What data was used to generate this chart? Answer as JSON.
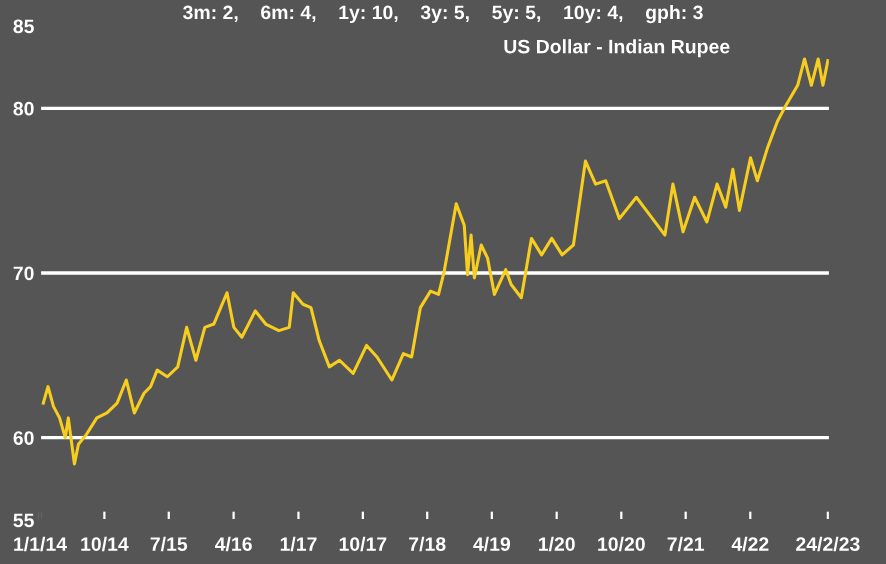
{
  "chart_data": {
    "type": "line",
    "title": "US Dollar - Indian Rupee",
    "annotations": [
      "3m: 2,    6m: 4,    1y: 10,    3y: 5,    5y: 5,    10y: 4,    gph: 3"
    ],
    "x": [
      "2014-01-15",
      "2014-02-04",
      "2014-02-27",
      "2014-03-25",
      "2014-04-18",
      "2014-05-01",
      "2014-05-27",
      "2014-06-13",
      "2014-07-17",
      "2014-08-30",
      "2014-10-12",
      "2014-11-24",
      "2015-01-02",
      "2015-02-05",
      "2015-03-18",
      "2015-04-15",
      "2015-05-13",
      "2015-06-25",
      "2015-08-08",
      "2015-09-15",
      "2015-10-24",
      "2015-12-01",
      "2016-01-08",
      "2016-03-04",
      "2016-04-02",
      "2016-05-06",
      "2016-07-02",
      "2016-08-15",
      "2016-10-10",
      "2016-11-23",
      "2016-12-10",
      "2017-01-20",
      "2017-02-23",
      "2017-03-30",
      "2017-05-12",
      "2017-06-24",
      "2017-08-21",
      "2017-10-17",
      "2017-11-30",
      "2018-02-01",
      "2018-03-22",
      "2018-04-26",
      "2018-06-02",
      "2018-07-15",
      "2018-08-18",
      "2018-09-11",
      "2018-11-01",
      "2018-12-05",
      "2018-12-19",
      "2019-01-03",
      "2019-01-17",
      "2019-02-15",
      "2019-03-14",
      "2019-04-12",
      "2019-05-30",
      "2019-06-22",
      "2019-08-04",
      "2019-09-16",
      "2019-10-29",
      "2019-12-11",
      "2020-01-24",
      "2020-03-12",
      "2020-05-02",
      "2020-06-14",
      "2020-07-27",
      "2020-09-23",
      "2020-12-04",
      "2021-01-31",
      "2021-04-04",
      "2021-05-08",
      "2021-06-20",
      "2021-08-08",
      "2021-09-29",
      "2021-11-11",
      "2021-12-18",
      "2022-01-17",
      "2022-02-14",
      "2022-04-02",
      "2022-05-01",
      "2022-06-13",
      "2022-07-25",
      "2022-08-23",
      "2022-10-19",
      "2022-11-17",
      "2022-12-16",
      "2023-01-14",
      "2023-02-03",
      "2023-02-24"
    ],
    "series": [
      {
        "color": "#f7cd1e",
        "values": [
          62.1,
          63.1,
          61.9,
          61.2,
          60.0,
          61.2,
          58.4,
          59.6,
          60.2,
          61.2,
          61.5,
          62.1,
          63.5,
          61.5,
          62.7,
          63.1,
          64.1,
          63.7,
          64.3,
          66.7,
          64.7,
          66.7,
          66.9,
          68.8,
          66.7,
          66.1,
          67.7,
          66.9,
          66.5,
          66.7,
          68.8,
          68.1,
          67.9,
          65.9,
          64.3,
          64.7,
          63.9,
          65.6,
          64.9,
          63.5,
          65.1,
          64.9,
          67.9,
          68.9,
          68.7,
          70.1,
          74.2,
          72.9,
          69.9,
          72.3,
          69.7,
          71.7,
          70.9,
          68.7,
          70.2,
          69.3,
          68.5,
          72.1,
          71.1,
          72.1,
          71.1,
          71.7,
          76.8,
          75.4,
          75.6,
          73.3,
          74.6,
          73.5,
          72.3,
          75.4,
          72.5,
          74.6,
          73.1,
          75.4,
          74.0,
          76.3,
          73.8,
          77.0,
          75.6,
          77.6,
          79.2,
          80.0,
          81.4,
          83.0,
          81.4,
          83.0,
          81.4,
          82.9
        ]
      }
    ],
    "xlim": [
      "2014-01-01",
      "2023-03-05"
    ],
    "xticks": [
      {
        "value": "2014-01-01",
        "label": "1/1/14"
      },
      {
        "value": "2014-10-01",
        "label": "10/14"
      },
      {
        "value": "2015-07-01",
        "label": "7/15"
      },
      {
        "value": "2016-04-01",
        "label": "4/16"
      },
      {
        "value": "2017-01-01",
        "label": "1/17"
      },
      {
        "value": "2017-10-01",
        "label": "10/17"
      },
      {
        "value": "2018-07-01",
        "label": "7/18"
      },
      {
        "value": "2019-04-01",
        "label": "4/19"
      },
      {
        "value": "2020-01-01",
        "label": "1/20"
      },
      {
        "value": "2020-10-01",
        "label": "10/20"
      },
      {
        "value": "2021-07-01",
        "label": "7/21"
      },
      {
        "value": "2022-04-01",
        "label": "4/22"
      },
      {
        "value": "2023-02-24",
        "label": "24/2/23"
      }
    ],
    "ylim": [
      55,
      85
    ],
    "yticks": [
      55,
      60,
      70,
      80,
      85
    ],
    "ref_lines": [
      {
        "axis": "y",
        "value": 60,
        "color": "#ffffff"
      },
      {
        "axis": "y",
        "value": 70,
        "color": "#ffffff"
      },
      {
        "axis": "y",
        "value": 80,
        "color": "#ffffff"
      }
    ],
    "grid": false,
    "legend": false,
    "marker": "none",
    "line_style": "solid"
  }
}
